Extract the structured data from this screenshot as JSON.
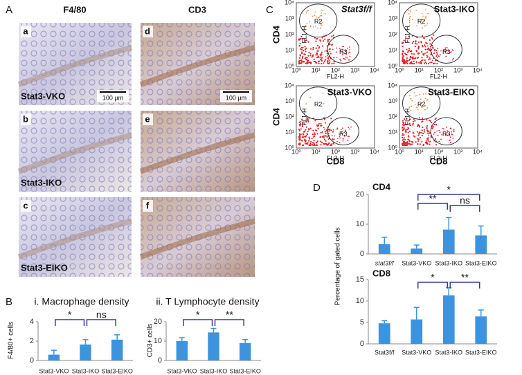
{
  "figure": {
    "panel_letters": [
      "A",
      "B",
      "C",
      "D"
    ],
    "columns": [
      "F4/80",
      "CD3"
    ],
    "image_letters": [
      "a",
      "b",
      "c",
      "d",
      "e",
      "f"
    ],
    "row_labels": [
      "Stat3-VKO",
      "Stat3-IKO",
      "Stat3-EIKO"
    ],
    "scale_bar": "100 µm",
    "flow": {
      "titles": [
        "Stat3f/f",
        "Stat3-IKO",
        "Stat3-VKO",
        "Stat3-EIKO"
      ],
      "gates": [
        "R2",
        "R3"
      ],
      "x_channel": "FL2-H",
      "y_channel": "FL1-H",
      "decades": [
        "10⁰",
        "10¹",
        "10²",
        "10³",
        "10⁴"
      ],
      "y_label": "CD4",
      "x_label": "CD8"
    }
  },
  "chart_data": [
    {
      "type": "bar",
      "title": "i. Macrophage density",
      "ylabel": "F4/80+ cells",
      "categories": [
        "Stat3-VKO",
        "Stat3-IKO",
        "Stat3-EIKO"
      ],
      "values": [
        0.6,
        1.65,
        2.15
      ],
      "errors": [
        0.45,
        0.5,
        0.5
      ],
      "color": "#3d93dd",
      "ylim": [
        0,
        4
      ],
      "yticks": [
        0,
        2,
        4
      ],
      "annotations": [
        "*",
        "ns"
      ]
    },
    {
      "type": "bar",
      "title": "ii. T Lymphocyte density",
      "ylabel": "CD3+ cells",
      "categories": [
        "Stat3-VKO",
        "Stat3-IKO",
        "Stat3-EIKO"
      ],
      "values": [
        10,
        14.5,
        9
      ],
      "errors": [
        1.8,
        2,
        1.8
      ],
      "color": "#3d93dd",
      "ylim": [
        0,
        20
      ],
      "yticks": [
        0,
        10,
        20
      ],
      "annotations": [
        "*",
        "**"
      ]
    },
    {
      "type": "bar",
      "title": "CD4",
      "ylabel": "Percentage of gated cells",
      "categories": [
        "stat3f/f",
        "Stat3-VKO",
        "Stat3-IKO",
        "Stat3-EIKO"
      ],
      "values": [
        3.3,
        1.8,
        8.2,
        6.2
      ],
      "errors": [
        2.3,
        1.2,
        4,
        3.2
      ],
      "color": "#3d93dd",
      "ylim": [
        0,
        20
      ],
      "yticks": [
        0,
        10,
        20
      ],
      "annotations": [
        "**",
        "ns",
        "*"
      ]
    },
    {
      "type": "bar",
      "title": "CD8",
      "categories": [
        "Stat3f/f",
        "Stat3-VKO",
        "Stat3-IKO",
        "Stat3-EIKO"
      ],
      "values": [
        4.8,
        5.7,
        11.3,
        6.4
      ],
      "errors": [
        0.6,
        2.8,
        1.8,
        1.5
      ],
      "color": "#3d93dd",
      "ylim": [
        0,
        15
      ],
      "yticks": [
        0,
        5,
        10,
        15
      ],
      "annotations": [
        "*",
        "**"
      ]
    }
  ]
}
